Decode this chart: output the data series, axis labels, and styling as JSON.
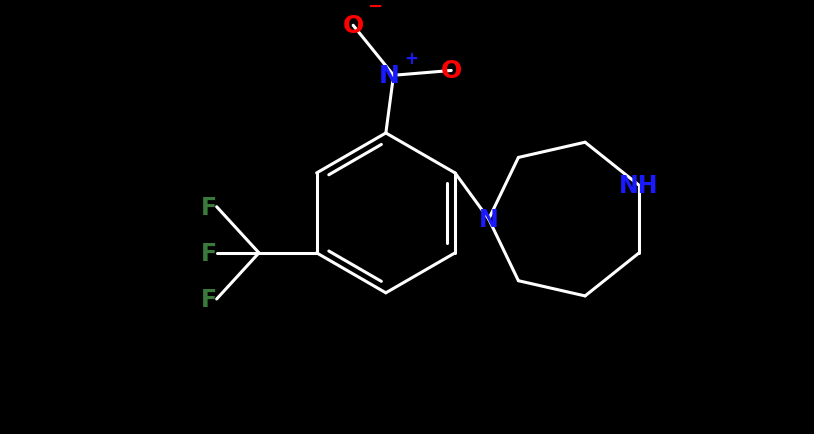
{
  "background_color": "#000000",
  "figsize": [
    8.14,
    4.35
  ],
  "dpi": 100,
  "bond_color": "#ffffff",
  "bond_lw": 2.2,
  "atom_text_color_N": "#1a1aff",
  "atom_text_color_O": "#ff0000",
  "atom_text_color_F": "#3a7a3a",
  "font_size_main": 17,
  "font_size_charge": 11,
  "ring_scale": 0.95,
  "xlim": [
    0,
    8.14
  ],
  "ylim": [
    0,
    4.35
  ]
}
